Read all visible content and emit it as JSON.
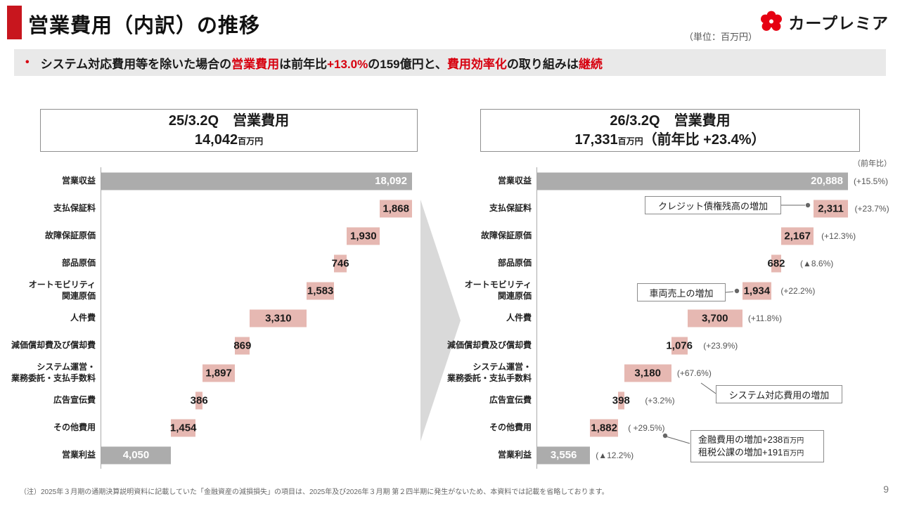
{
  "header": {
    "title": "営業費用（内訳）の推移",
    "unit_note": "（単位：百万円）",
    "logo_text": "カープレミア"
  },
  "colors": {
    "accent_red": "#C8161E",
    "highlight_red": "#D7000F",
    "bar_pink": "#E6B8B2",
    "bar_gray": "#ACACAC",
    "arrow_gray": "#D9D9D9"
  },
  "summary": {
    "bullet": "•",
    "segments": [
      {
        "text": "システム対応費用等を除いた場合の",
        "highlight": false
      },
      {
        "text": "営業費用",
        "highlight": true
      },
      {
        "text": "は前年比",
        "highlight": false
      },
      {
        "text": "+13.0%",
        "highlight": true
      },
      {
        "text": "の159億円と、",
        "highlight": false
      },
      {
        "text": "費用効率化",
        "highlight": true
      },
      {
        "text": "の取り組みは",
        "highlight": false
      },
      {
        "text": "継続",
        "highlight": true
      }
    ]
  },
  "chart_data": [
    {
      "type": "bar",
      "subtype": "waterfall",
      "unit": "百万円",
      "title": "25/3.2Q　営業費用",
      "total_amount": "14,042",
      "total_unit": "百万円",
      "total_suffix": "",
      "categories": [
        "営業収益",
        "支払保証料",
        "故障保証原価",
        "部品原価",
        "オートモビリティ\n関連原価",
        "人件費",
        "減価償却費及び償却費",
        "システム運営・\n業務委託・支払手数料",
        "広告宣伝費",
        "その他費用",
        "営業利益"
      ],
      "values": [
        18092,
        1868,
        1930,
        746,
        1583,
        3310,
        869,
        1897,
        386,
        1454,
        4050
      ]
    },
    {
      "type": "bar",
      "subtype": "waterfall",
      "unit": "百万円",
      "title": "26/3.2Q　営業費用",
      "total_amount": "17,331",
      "total_unit": "百万円",
      "total_suffix": "（前年比 +23.4%）",
      "yoy_header": "（前年比）",
      "categories": [
        "営業収益",
        "支払保証料",
        "故障保証原価",
        "部品原価",
        "オートモビリティ\n関連原価",
        "人件費",
        "減価償却費及び償却費",
        "システム運営・\n業務委託・支払手数料",
        "広告宣伝費",
        "その他費用",
        "営業利益"
      ],
      "values": [
        20888,
        2311,
        2167,
        682,
        1934,
        3700,
        1076,
        3180,
        398,
        1882,
        3556
      ],
      "yoy": [
        "(+15.5%)",
        "(+23.7%)",
        "(+12.3%)",
        "(▲8.6%)",
        "(+22.2%)",
        "(+11.8%)",
        "(+23.9%)",
        "(+67.6%)",
        "(+3.2%)",
        "( +29.5%)",
        "(▲12.2%)"
      ]
    }
  ],
  "callouts": {
    "credit": "クレジット債権残高の増加",
    "vehicle": "車両売上の増加",
    "system": "システム対応費用の増加",
    "finance_line1_main": "金融費用の増加+238",
    "finance_line1_unit": "百万円",
    "finance_line2_main": "租税公課の増加+191",
    "finance_line2_unit": "百万円"
  },
  "footer": {
    "footnote": "（注）2025年３月期の通期決算説明資料に記載していた「金融資産の減損損失」の項目は、2025年及び2026年３月期 第２四半期に発生がないため、本資料では記載を省略しております。",
    "page_number": "9"
  }
}
